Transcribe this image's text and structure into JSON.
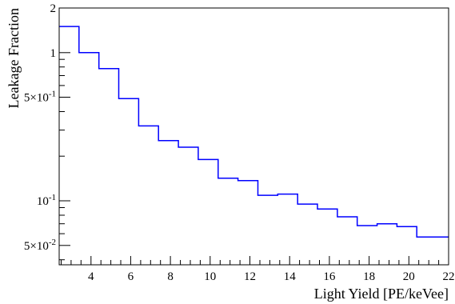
{
  "chart_data": {
    "type": "line",
    "step": true,
    "xlabel": "Light Yield [PE/keVee]",
    "ylabel": "Leakage Fraction",
    "xlim": [
      2.4,
      22
    ],
    "ylim": [
      0.037,
      2
    ],
    "yscale": "log",
    "grid": false,
    "line_color": "#0000ff",
    "bin_edges": [
      2.4,
      3.4,
      4.4,
      5.4,
      6.4,
      7.4,
      8.4,
      9.4,
      10.4,
      11.4,
      12.4,
      13.4,
      14.4,
      15.4,
      16.4,
      17.4,
      18.4,
      19.4,
      20.4,
      22
    ],
    "values": [
      1.5,
      1.0,
      0.78,
      0.49,
      0.32,
      0.255,
      0.23,
      0.19,
      0.142,
      0.137,
      0.109,
      0.111,
      0.095,
      0.088,
      0.078,
      0.068,
      0.07,
      0.067,
      0.057
    ],
    "x_ticks": [
      4,
      6,
      8,
      10,
      12,
      14,
      16,
      18,
      20,
      22
    ],
    "x_tick_labels": [
      "4",
      "6",
      "8",
      "10",
      "12",
      "14",
      "16",
      "18",
      "20",
      "22"
    ],
    "y_major_ticks": [
      0.05,
      0.1,
      0.5,
      1,
      2
    ],
    "y_tick_labels": [
      {
        "value": 2,
        "mant": "2",
        "exp": ""
      },
      {
        "value": 1,
        "mant": "1",
        "exp": ""
      },
      {
        "value": 0.5,
        "mant": "5×10",
        "exp": "-1"
      },
      {
        "value": 0.1,
        "mant": "10",
        "exp": "-1"
      },
      {
        "value": 0.05,
        "mant": "5×10",
        "exp": "-2"
      }
    ],
    "y_minor_ticks": [
      0.04,
      0.06,
      0.07,
      0.08,
      0.09,
      0.2,
      0.3,
      0.4,
      0.6,
      0.7,
      0.8,
      0.9
    ]
  }
}
